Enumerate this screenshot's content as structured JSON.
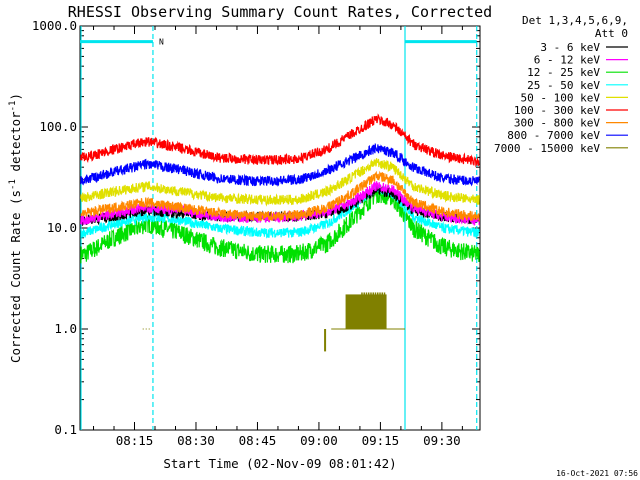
{
  "chart_data": {
    "type": "line",
    "title": "RHESSI Observing Summary Count Rates, Corrected",
    "xlabel": "Start Time (02-Nov-09 08:01:42)",
    "ylabel": "Corrected Count Rate (s⁻¹ detector⁻¹)",
    "y_scale": "log",
    "ylim": [
      0.1,
      1000
    ],
    "y_ticks": [
      "0.1",
      "1.0",
      "10.0",
      "100.0",
      "1000.0"
    ],
    "x_ticks": [
      "08:15",
      "08:30",
      "08:45",
      "09:00",
      "09:15",
      "09:30"
    ],
    "x_tick_minutes": [
      15,
      30,
      45,
      60,
      75,
      90
    ],
    "xlim_minutes": [
      1.7,
      99.3
    ],
    "legend_header": [
      "Det 1,3,4,5,6,9,",
      "Att 0"
    ],
    "legend_position": "top-right",
    "timestamp": "16-Oct-2021 07:56",
    "night_marker_label": "N",
    "marker_lines_minutes": [
      1.7,
      19.5,
      81,
      98.5
    ],
    "series": [
      {
        "name": "3 - 6 keV",
        "color": "#000000",
        "x": [
          3,
          10,
          18,
          26,
          35,
          45,
          55,
          62,
          68,
          74,
          78,
          83,
          90,
          98
        ],
        "y": [
          12,
          13,
          15,
          14,
          13,
          13,
          13,
          14,
          17,
          24,
          22,
          15,
          13,
          12
        ]
      },
      {
        "name": "6 - 12 keV",
        "color": "#ff00ff",
        "x": [
          3,
          10,
          18,
          26,
          35,
          45,
          55,
          62,
          68,
          74,
          78,
          83,
          90,
          98
        ],
        "y": [
          12,
          14,
          16,
          15,
          13,
          12.5,
          13,
          14.5,
          18,
          26,
          24,
          16,
          13,
          12
        ]
      },
      {
        "name": "12 - 25 keV",
        "color": "#00e000",
        "x": [
          3,
          10,
          18,
          26,
          35,
          45,
          55,
          62,
          68,
          74,
          78,
          83,
          90,
          98
        ],
        "y": [
          5.5,
          8,
          11,
          9,
          6.5,
          5.5,
          5.5,
          7,
          12,
          22,
          20,
          10,
          6.5,
          5.5
        ]
      },
      {
        "name": "25 - 50 keV",
        "color": "#00ffff",
        "x": [
          3,
          10,
          18,
          26,
          35,
          45,
          55,
          62,
          68,
          74,
          78,
          83,
          90,
          98
        ],
        "y": [
          9,
          11,
          13,
          12,
          10,
          9,
          9,
          11,
          16,
          25,
          22,
          13,
          10,
          9
        ]
      },
      {
        "name": "50 - 100 keV",
        "color": "#e0e000",
        "x": [
          3,
          10,
          18,
          26,
          35,
          45,
          55,
          62,
          68,
          74,
          78,
          83,
          90,
          98
        ],
        "y": [
          20,
          23,
          26,
          23,
          20,
          19,
          19,
          23,
          32,
          45,
          40,
          26,
          21,
          19
        ]
      },
      {
        "name": "100 - 300 keV",
        "color": "#ff0000",
        "x": [
          3,
          10,
          18,
          26,
          35,
          45,
          55,
          62,
          68,
          74,
          78,
          83,
          90,
          98
        ],
        "y": [
          50,
          60,
          72,
          62,
          50,
          47,
          48,
          60,
          85,
          120,
          105,
          68,
          52,
          46
        ]
      },
      {
        "name": "300 - 800 keV",
        "color": "#ff8800",
        "x": [
          3,
          10,
          18,
          26,
          35,
          45,
          55,
          62,
          68,
          74,
          78,
          83,
          90,
          98
        ],
        "y": [
          14,
          16,
          18,
          16,
          14,
          13,
          13.5,
          16,
          22,
          33,
          30,
          18,
          14.5,
          13
        ]
      },
      {
        "name": "800 - 7000 keV",
        "color": "#0000ff",
        "x": [
          3,
          10,
          18,
          26,
          35,
          45,
          55,
          62,
          68,
          74,
          78,
          83,
          90,
          98
        ],
        "y": [
          30,
          36,
          43,
          38,
          31,
          29,
          30,
          37,
          48,
          62,
          56,
          40,
          31,
          29
        ]
      },
      {
        "name": "7000 - 15000 keV",
        "color": "#808000",
        "x": [
          17,
          19,
          63,
          67,
          71,
          73,
          75,
          76,
          81
        ],
        "y": [
          1,
          1,
          1,
          1,
          1,
          2.3,
          2.3,
          2.3,
          1
        ]
      }
    ]
  }
}
